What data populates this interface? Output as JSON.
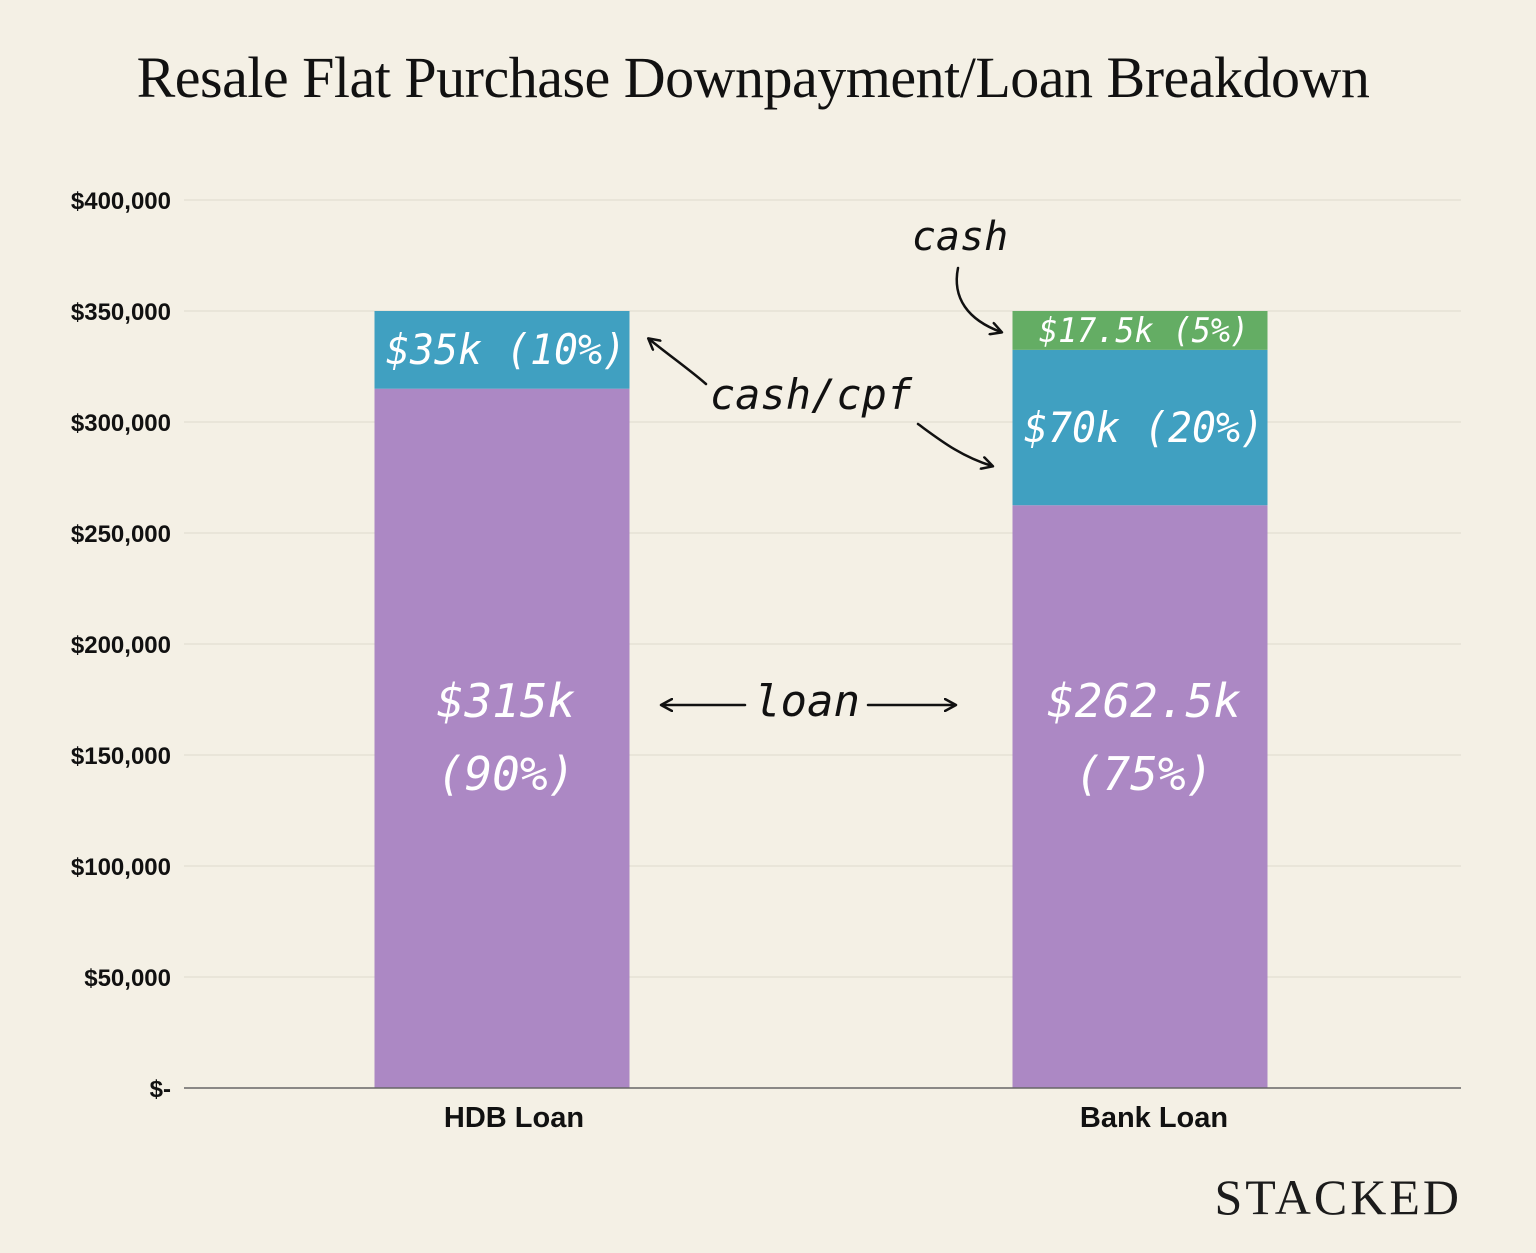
{
  "chart_data": {
    "type": "bar",
    "stacked": true,
    "title": "Resale Flat Purchase Downpayment/Loan Breakdown",
    "categories": [
      "HDB Loan",
      "Bank Loan"
    ],
    "ylim": [
      0,
      400000
    ],
    "yticks": [
      0,
      50000,
      100000,
      150000,
      200000,
      250000,
      300000,
      350000,
      400000
    ],
    "ytick_labels": [
      "$-",
      "$50,000",
      "$100,000",
      "$150,000",
      "$200,000",
      "$250,000",
      "$300,000",
      "$350,000",
      "$400,000"
    ],
    "grid": true,
    "series": [
      {
        "color": "#ac88c4",
        "values": [
          315000,
          262500
        ],
        "labels": [
          [
            "$315k",
            "(90%)"
          ],
          [
            "$262.5k",
            "(75%)"
          ]
        ]
      },
      {
        "color": "#40a0c1",
        "values": [
          35000,
          70000
        ],
        "labels": [
          [
            "$35k (10%)"
          ],
          [
            "$70k (20%)"
          ]
        ]
      },
      {
        "color": "#64ad64",
        "values": [
          0,
          17500
        ],
        "labels": [
          [],
          [
            "$17.5k (5%)"
          ]
        ]
      }
    ],
    "annotations": {
      "cash": "cash",
      "cash_cpf": "cash/cpf",
      "loan": "loan"
    }
  },
  "brand": "STACKED",
  "colors": {
    "background": "#f4f0e5",
    "grid": "#e2ded2",
    "axis": "#666666"
  }
}
